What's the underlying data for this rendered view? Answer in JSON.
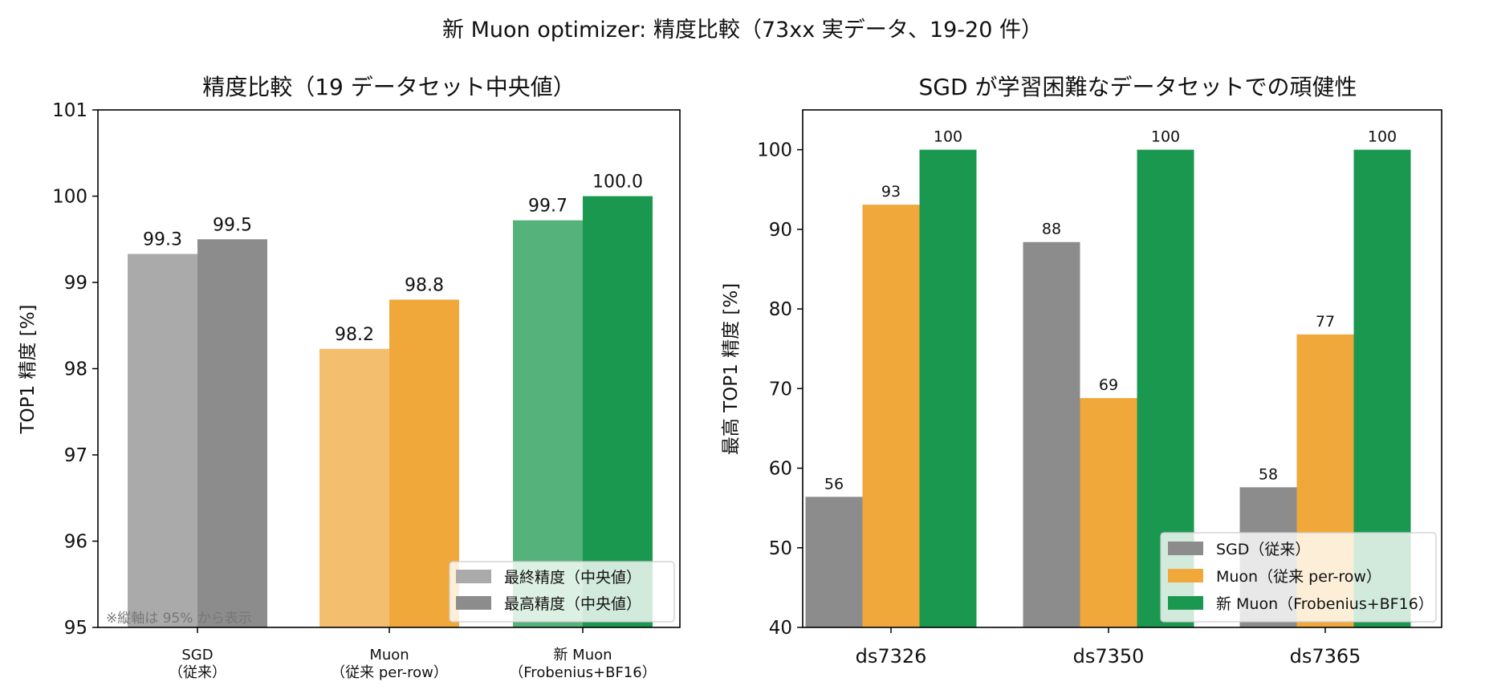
{
  "figure": {
    "title": "新 Muon optimizer: 精度比較（73xx 実データ、19-20 件）"
  },
  "colors": {
    "sgd_light": "#aaaaaa",
    "sgd": "#8c8c8c",
    "muon_light": "#f3be6d",
    "muon": "#f0a83a",
    "new_light": "#55b27b",
    "new": "#1a9850"
  },
  "chart_data": [
    {
      "type": "bar",
      "title": "精度比較（19 データセット中央値）",
      "xlabel": "",
      "ylabel": "TOP1 精度 [%]",
      "ylim": [
        95,
        101
      ],
      "yticks": [
        95,
        96,
        97,
        98,
        99,
        100,
        101
      ],
      "categories": [
        [
          "SGD",
          "（従来）"
        ],
        [
          "Muon",
          "（従来 per-row）"
        ],
        [
          "新 Muon",
          "（Frobenius+BF16）"
        ]
      ],
      "series": [
        {
          "name": "最終精度（中央値）",
          "values": [
            99.33,
            98.23,
            99.72
          ],
          "labels": [
            "99.3",
            "98.2",
            "99.7"
          ]
        },
        {
          "name": "最高精度（中央値）",
          "values": [
            99.5,
            98.8,
            100.0
          ],
          "labels": [
            "99.5",
            "98.8",
            "100.0"
          ]
        }
      ],
      "legend_position": "lower-right",
      "annotation": "※縦軸は 95% から表示",
      "grid": false
    },
    {
      "type": "bar",
      "title": "SGD が学習困難なデータセットでの頑健性",
      "xlabel": "",
      "ylabel": "最高 TOP1 精度 [%]",
      "ylim": [
        40,
        105
      ],
      "yticks": [
        40,
        50,
        60,
        70,
        80,
        90,
        100
      ],
      "categories": [
        "ds7326",
        "ds7350",
        "ds7365"
      ],
      "series": [
        {
          "name": "SGD（従来）",
          "values": [
            56.4,
            88.4,
            57.6
          ],
          "labels": [
            "56",
            "88",
            "58"
          ]
        },
        {
          "name": "Muon（従来 per-row）",
          "values": [
            93.1,
            68.8,
            76.8
          ],
          "labels": [
            "93",
            "69",
            "77"
          ]
        },
        {
          "name": "新 Muon（Frobenius+BF16）",
          "values": [
            100,
            100,
            100
          ],
          "labels": [
            "100",
            "100",
            "100"
          ]
        }
      ],
      "legend_position": "lower-right",
      "grid": false
    }
  ]
}
